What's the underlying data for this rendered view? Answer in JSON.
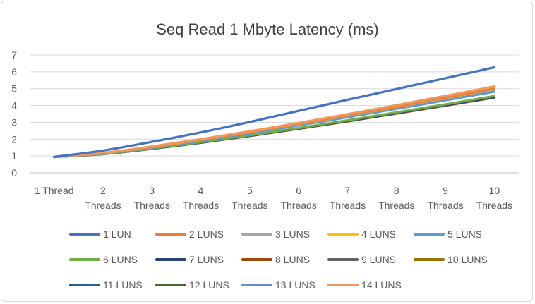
{
  "chart_data": {
    "type": "line",
    "title": "Seq Read 1 Mbyte Latency (ms)",
    "xlabel": "",
    "ylabel": "",
    "categories": [
      [
        "1 Thread"
      ],
      [
        "2",
        "Threads"
      ],
      [
        "3",
        "Threads"
      ],
      [
        "4",
        "Threads"
      ],
      [
        "5",
        "Threads"
      ],
      [
        "6",
        "Threads"
      ],
      [
        "7",
        "Threads"
      ],
      [
        "8",
        "Threads"
      ],
      [
        "9",
        "Threads"
      ],
      [
        "10",
        "Threads"
      ]
    ],
    "ylim": [
      0,
      7
    ],
    "yticks": [
      0,
      1,
      2,
      3,
      4,
      5,
      6,
      7
    ],
    "grid": "horizontal",
    "legend": "bottom",
    "series": [
      {
        "name": "1 LUN",
        "color": "#4472C4",
        "values": [
          0.95,
          1.32,
          1.84,
          2.4,
          3.02,
          3.68,
          4.34,
          4.98,
          5.62,
          6.27
        ]
      },
      {
        "name": "2 LUNS",
        "color": "#ED7D31",
        "values": [
          0.95,
          1.17,
          1.55,
          1.97,
          2.43,
          2.91,
          3.42,
          3.94,
          4.47,
          5.0
        ]
      },
      {
        "name": "3 LUNS",
        "color": "#A5A5A5",
        "values": [
          0.94,
          1.17,
          1.54,
          1.96,
          2.42,
          2.9,
          3.4,
          3.93,
          4.46,
          4.98
        ]
      },
      {
        "name": "4 LUNS",
        "color": "#FFC000",
        "values": [
          0.94,
          1.16,
          1.53,
          1.95,
          2.41,
          2.89,
          3.39,
          3.91,
          4.44,
          4.96
        ]
      },
      {
        "name": "5 LUNS",
        "color": "#5B9BD5",
        "values": [
          0.94,
          1.15,
          1.5,
          1.9,
          2.34,
          2.81,
          3.3,
          3.8,
          4.31,
          4.82
        ]
      },
      {
        "name": "6 LUNS",
        "color": "#70AD47",
        "values": [
          0.94,
          1.13,
          1.45,
          1.82,
          2.23,
          2.66,
          3.12,
          3.59,
          4.07,
          4.56
        ]
      },
      {
        "name": "7 LUNS",
        "color": "#264478",
        "values": [
          0.94,
          1.13,
          1.44,
          1.8,
          2.21,
          2.64,
          3.09,
          3.55,
          4.02,
          4.5
        ]
      },
      {
        "name": "8 LUNS",
        "color": "#9E480E",
        "values": [
          0.94,
          1.12,
          1.43,
          1.79,
          2.19,
          2.62,
          3.06,
          3.52,
          3.99,
          4.47
        ]
      },
      {
        "name": "9 LUNS",
        "color": "#636363",
        "values": [
          0.94,
          1.12,
          1.43,
          1.79,
          2.19,
          2.62,
          3.07,
          3.53,
          4.0,
          4.48
        ]
      },
      {
        "name": "10 LUNS",
        "color": "#997300",
        "values": [
          0.94,
          1.12,
          1.43,
          1.79,
          2.2,
          2.63,
          3.08,
          3.54,
          4.01,
          4.49
        ]
      },
      {
        "name": "11 LUNS",
        "color": "#255E91",
        "values": [
          0.94,
          1.12,
          1.44,
          1.8,
          2.21,
          2.65,
          3.1,
          3.57,
          4.05,
          4.55
        ]
      },
      {
        "name": "12 LUNS",
        "color": "#43682B",
        "values": [
          0.94,
          1.12,
          1.43,
          1.79,
          2.19,
          2.62,
          3.06,
          3.53,
          4.0,
          4.48
        ]
      },
      {
        "name": "13 LUNS",
        "color": "#698ED0",
        "values": [
          0.94,
          1.16,
          1.52,
          1.93,
          2.38,
          2.86,
          3.36,
          3.87,
          4.4,
          4.93
        ]
      },
      {
        "name": "14 LUNS",
        "color": "#F1975A",
        "values": [
          0.95,
          1.18,
          1.57,
          2.0,
          2.47,
          2.96,
          3.48,
          4.02,
          4.57,
          5.13
        ]
      }
    ]
  }
}
